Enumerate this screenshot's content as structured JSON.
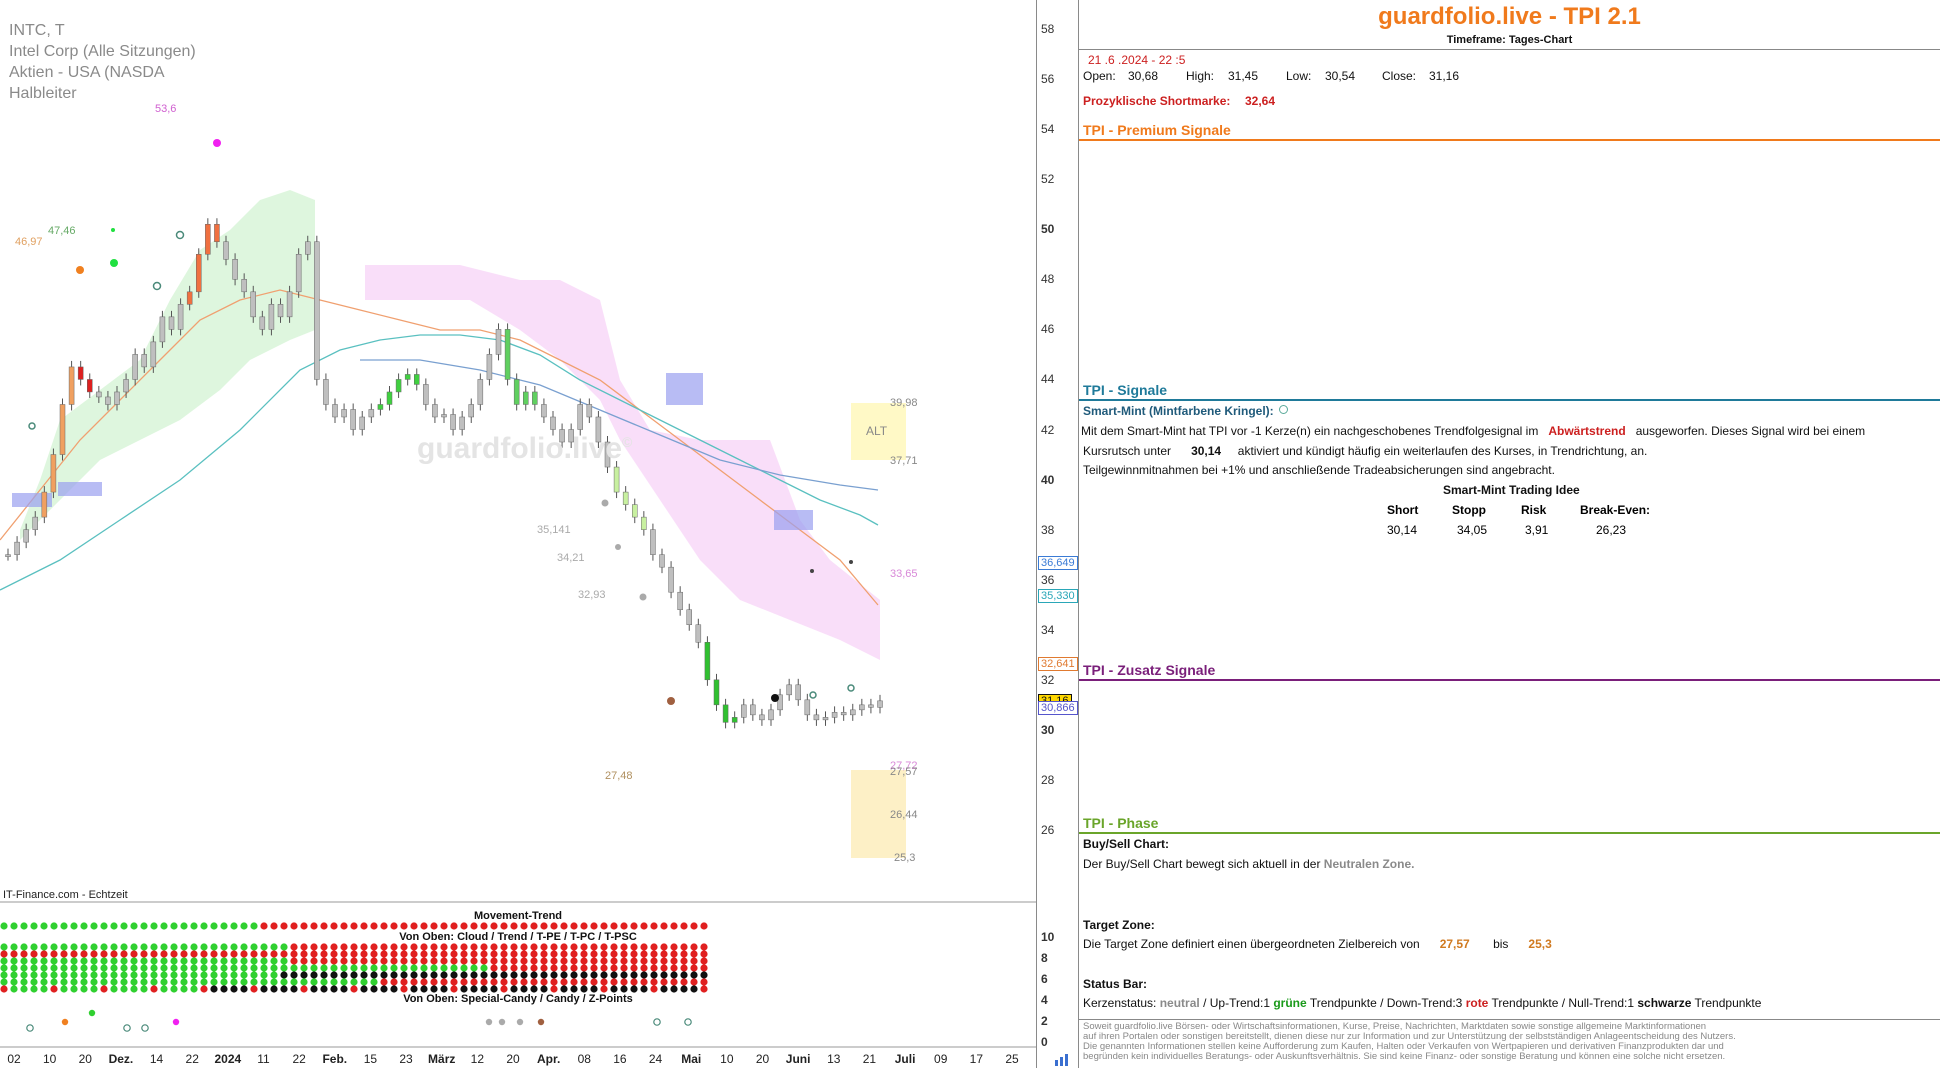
{
  "chart": {
    "meta_lines": [
      "INTC, T",
      "Intel Corp (Alle Sitzungen)",
      "Aktien - USA (NASDA",
      "Halbleiter"
    ],
    "watermark": "guardfolio.live",
    "watermark_mark": "©",
    "source_label": "IT-Finance.com - Echtzeit",
    "y_ticks": [
      "58",
      "56",
      "54",
      "52",
      "50",
      "48",
      "46",
      "44",
      "42",
      "40",
      "38",
      "36",
      "34",
      "32",
      "30",
      "28",
      "26"
    ],
    "bold_y_ticks": [
      "50",
      "40",
      "30"
    ],
    "x_ticks": [
      {
        "label": "02",
        "bold": false
      },
      {
        "label": "10",
        "bold": false
      },
      {
        "label": "20",
        "bold": false
      },
      {
        "label": "Dez.",
        "bold": true
      },
      {
        "label": "14",
        "bold": false
      },
      {
        "label": "22",
        "bold": false
      },
      {
        "label": "2024",
        "bold": true
      },
      {
        "label": "11",
        "bold": false
      },
      {
        "label": "22",
        "bold": false
      },
      {
        "label": "Feb.",
        "bold": true
      },
      {
        "label": "15",
        "bold": false
      },
      {
        "label": "23",
        "bold": false
      },
      {
        "label": "März",
        "bold": true
      },
      {
        "label": "12",
        "bold": false
      },
      {
        "label": "20",
        "bold": false
      },
      {
        "label": "Apr.",
        "bold": true
      },
      {
        "label": "08",
        "bold": false
      },
      {
        "label": "16",
        "bold": false
      },
      {
        "label": "24",
        "bold": false
      },
      {
        "label": "Mai",
        "bold": true
      },
      {
        "label": "10",
        "bold": false
      },
      {
        "label": "20",
        "bold": false
      },
      {
        "label": "Juni",
        "bold": true
      },
      {
        "label": "13",
        "bold": false
      },
      {
        "label": "21",
        "bold": false
      },
      {
        "label": "Juli",
        "bold": true
      },
      {
        "label": "09",
        "bold": false
      },
      {
        "label": "17",
        "bold": false
      },
      {
        "label": "25",
        "bold": false
      }
    ],
    "price_boxes": [
      {
        "label": "36,649",
        "color": "#3a7bd5",
        "price": 36.649
      },
      {
        "label": "35,330",
        "color": "#2aa7b8",
        "price": 35.33
      },
      {
        "label": "32,641",
        "color": "#e07a30",
        "price": 32.641
      },
      {
        "label": "31,16",
        "color": "#111",
        "price": 31.16,
        "bg": "#ffd800"
      },
      {
        "label": "30,866",
        "color": "#5555cc",
        "price": 30.866
      }
    ],
    "annotations": [
      {
        "label": "53,6",
        "color": "#d060d0"
      },
      {
        "label": "47,46",
        "color": "#66aa66"
      },
      {
        "label": "46,97",
        "color": "#e0a060"
      },
      {
        "label": "35,141",
        "color": "#aaaaaa"
      },
      {
        "label": "34,21",
        "color": "#aaaaaa"
      },
      {
        "label": "32,93",
        "color": "#aaaaaa"
      },
      {
        "label": "27,48",
        "color": "#b09060"
      },
      {
        "label": "39,98",
        "color": "#888888"
      },
      {
        "label": "37,71",
        "color": "#888888"
      },
      {
        "label": "33,65",
        "color": "#d888d8"
      },
      {
        "label": "27,72",
        "color": "#d888d8"
      },
      {
        "label": "27,57",
        "color": "#888888"
      },
      {
        "label": "26,44",
        "color": "#888888"
      },
      {
        "label": "25,3",
        "color": "#888888"
      },
      {
        "label": "ALT",
        "color": "#888888"
      }
    ],
    "ind_labels": {
      "movement": "Movement-Trend",
      "cloud": "Von Oben: Cloud / Trend / T-PE / T-PC / T-PSC",
      "special": "Von Oben: Special-Candy / Candy / Z-Points"
    },
    "ind_y_ticks": [
      "10",
      "8",
      "6",
      "4",
      "2",
      "0"
    ]
  },
  "info": {
    "title": "guardfolio.live - TPI 2.1",
    "timeframe": "Timeframe: Tages-Chart",
    "datetime": "21 .6 .2024 - 22 :5",
    "ohlc": {
      "open_label": "Open:",
      "open": "30,68",
      "high_label": "High:",
      "high": "31,45",
      "low_label": "Low:",
      "low": "30,54",
      "close_label": "Close:",
      "close": "31,16"
    },
    "short_label": "Prozyklische Shortmarke:",
    "short_value": "32,64",
    "premium_header": "TPI - Premium Signale",
    "signals_header": "TPI - Signale",
    "smart_mint_label": "Smart-Mint (Mintfarbene Kringel):",
    "signal_text_1a": "Mit dem Smart-Mint hat TPI vor -1  Kerze(n) ein nachgeschobenes Trendfolgesignal im",
    "signal_trend": "Abwärtstrend",
    "signal_text_1b": "ausgeworfen. Dieses Signal wird bei einem",
    "signal_text_2a": "Kursrutsch unter",
    "signal_level": "30,14",
    "signal_text_2b": "aktiviert und kündigt häufig ein weiterlaufen des Kurses, in Trendrichtung, an.",
    "signal_text_3": "Teilgewinnmitnahmen bei +1% und anschließende Tradeabsicherungen sind angebracht.",
    "trading_title": "Smart-Mint Trading Idee",
    "trading_headers": [
      "Short",
      "Stopp",
      "Risk",
      "Break-Even:"
    ],
    "trading_values": [
      "30,14",
      "34,05",
      "3,91",
      "26,23"
    ],
    "zusatz_header": "TPI - Zusatz Signale",
    "phase_header": "TPI - Phase",
    "buysell_title": "Buy/Sell Chart:",
    "buysell_text": "Der Buy/Sell Chart bewegt sich aktuell in der",
    "buysell_zone": "Neutralen Zone.",
    "target_title": "Target Zone:",
    "target_text": "Die Target Zone definiert einen übergeordneten Zielbereich von",
    "target_from": "27,57",
    "target_bis": "bis",
    "target_to": "25,3",
    "status_title": "Status Bar:",
    "status_kerzen": "Kerzenstatus:",
    "status_neutral": "neutral",
    "status_up": "/ Up-Trend:1",
    "status_gruene": "grüne",
    "status_tp1": "Trendpunkte  / Down-Trend:3",
    "status_rote": "rote",
    "status_tp2": "Trendpunkte / Null-Trend:1",
    "status_schwarze": "schwarze",
    "status_tp3": "Trendpunkte",
    "disclaimer": [
      "Soweit guardfolio.live Börsen- oder Wirtschaftsinformationen, Kurse, Preise, Nachrichten, Marktdaten sowie sonstige allgemeine Marktinformationen",
      "auf ihren Portalen oder sonstigen bereitstellt, dienen diese nur zur Information und zur Unterstützung der selbstständigen Anlageentscheidung des Nutzers.",
      "Die genannten Informationen stellen keine Aufforderung zum Kaufen, Halten oder Verkaufen von Wertpapieren und derivativen Finanzprodukten dar und",
      "begründen kein individuelles Beratungs- oder Auskunftsverhältnis. Sie sind keine Finanz- oder sonstige Beratung und können eine solche nicht ersetzen."
    ]
  },
  "colors": {
    "accent": "#f07a1c",
    "premium": "#f07a1c",
    "signals": "#1f7a9a",
    "zusatz": "#7a1f7a",
    "phase": "#6aa52a",
    "red": "#cc2020",
    "green": "#1a9a1a",
    "neutral": "#8a8a8a",
    "smartmint": "#5aaa9a"
  }
}
